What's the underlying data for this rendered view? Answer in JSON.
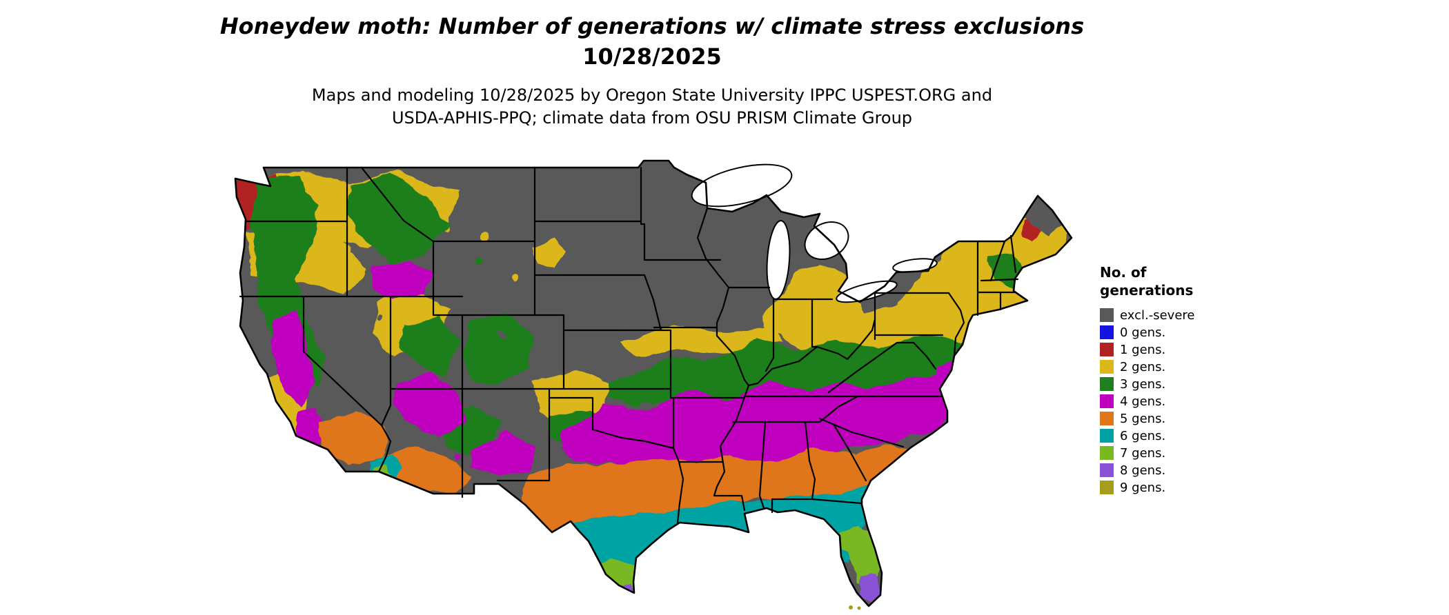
{
  "title": {
    "line1": "Honeydew moth: Number of generations w/ climate stress exclusions",
    "line2": "10/28/2025"
  },
  "subtitle": {
    "line1": "Maps and modeling 10/28/2025 by Oregon State University IPPC USPEST.ORG and",
    "line2": "USDA-APHIS-PPQ; climate data from OSU PRISM Climate Group"
  },
  "legend": {
    "title_line1": "No. of",
    "title_line2": "generations",
    "entries": [
      {
        "label": "excl.-severe",
        "key": "severe"
      },
      {
        "label": "0 gens.",
        "key": "gen0"
      },
      {
        "label": "1 gens.",
        "key": "gen1"
      },
      {
        "label": "2 gens.",
        "key": "gen2"
      },
      {
        "label": "3 gens.",
        "key": "gen3"
      },
      {
        "label": "4 gens.",
        "key": "gen4"
      },
      {
        "label": "5 gens.",
        "key": "gen5"
      },
      {
        "label": "6 gens.",
        "key": "gen6"
      },
      {
        "label": "7 gens.",
        "key": "gen7"
      },
      {
        "label": "8 gens.",
        "key": "gen8"
      },
      {
        "label": "9 gens.",
        "key": "gen9"
      }
    ]
  },
  "colors": {
    "severe": "#595959",
    "gen0": "#1414E0",
    "gen1": "#B22222",
    "gen2": "#DBB71A",
    "gen3": "#1F7F1F",
    "gen4": "#BF00BF",
    "gen5": "#E0761A",
    "gen6": "#00A3A3",
    "gen7": "#79B821",
    "gen8": "#8A52D6",
    "gen9": "#A79D1C"
  }
}
